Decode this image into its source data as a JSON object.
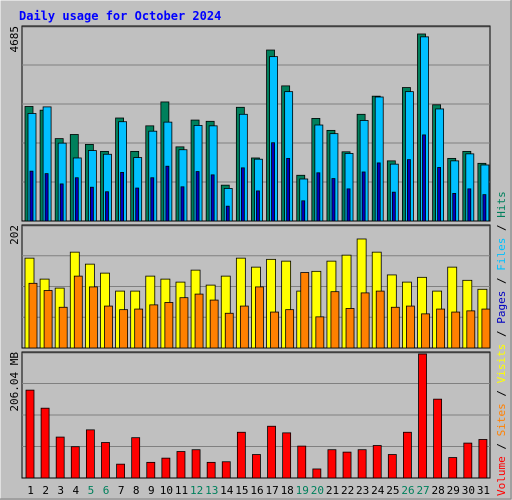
{
  "chart_data": {
    "type": "bar",
    "title": "Daily usage for October 2024",
    "categories": [
      "1",
      "2",
      "3",
      "4",
      "5",
      "6",
      "7",
      "8",
      "9",
      "10",
      "11",
      "12",
      "13",
      "14",
      "15",
      "16",
      "17",
      "18",
      "19",
      "20",
      "21",
      "22",
      "23",
      "24",
      "25",
      "26",
      "27",
      "28",
      "29",
      "30",
      "31"
    ],
    "weekend_days": [
      "5",
      "6",
      "12",
      "13",
      "19",
      "20",
      "26",
      "27"
    ],
    "panels": {
      "top": {
        "max_label": "4685",
        "ylim": [
          0,
          4685
        ],
        "series": [
          {
            "name": "Hits",
            "values": [
              2780,
              2690,
              2000,
              2100,
              1860,
              1690,
              2500,
              1690,
              2310,
              2890,
              1800,
              2450,
              2420,
              870,
              2760,
              1530,
              4150,
              3280,
              1110,
              2490,
              2200,
              1680,
              2590,
              3030,
              1460,
              3240,
              4540,
              2820,
              1520,
              1690,
              1400
            ]
          },
          {
            "name": "Files",
            "values": [
              2610,
              2770,
              1890,
              1530,
              1710,
              1620,
              2410,
              1540,
              2180,
              2400,
              1730,
              2320,
              2310,
              790,
              2590,
              1500,
              3990,
              3140,
              1020,
              2330,
              2120,
              1640,
              2440,
              3010,
              1380,
              3140,
              4470,
              2720,
              1460,
              1630,
              1360
            ]
          },
          {
            "name": "Pages",
            "values": [
              1210,
              1150,
              900,
              1050,
              820,
              710,
              1180,
              800,
              1050,
              1330,
              830,
              1200,
              1120,
              360,
              1290,
              730,
              1900,
              1520,
              490,
              1170,
              1030,
              780,
              1190,
              1410,
              700,
              1490,
              2090,
              1300,
              670,
              780,
              640
            ]
          }
        ]
      },
      "middle": {
        "max_label": "202",
        "ylim": [
          0,
          202
        ],
        "series": [
          {
            "name": "Visits",
            "values": [
              150,
              115,
              100,
              160,
              140,
              125,
              95,
              95,
              120,
              115,
              110,
              130,
              105,
              120,
              150,
              135,
              148,
              145,
              95,
              128,
              145,
              155,
              182,
              160,
              122,
              110,
              118,
              95,
              135,
              113,
              98
            ]
          },
          {
            "name": "Sites",
            "values": [
              108,
              96,
              68,
              120,
              102,
              70,
              64,
              65,
              72,
              76,
              84,
              90,
              80,
              58,
              70,
              102,
              60,
              64,
              126,
              52,
              94,
              66,
              92,
              95,
              68,
              70,
              57,
              65,
              60,
              62,
              65
            ]
          }
        ]
      },
      "bottom": {
        "max_label": "206.04 MB",
        "ylim": [
          0,
          206.04
        ],
        "series": [
          {
            "name": "Volume",
            "values": [
              146,
              116,
              68,
              52,
              80,
              59,
              23,
              67,
              26,
              33,
              44,
              47,
              26,
              27,
              76,
              39,
              86,
              75,
              53,
              15,
              47,
              43,
              47,
              54,
              39,
              76,
              206,
              131,
              34,
              58,
              64
            ]
          }
        ]
      }
    },
    "legend": [
      "Volume",
      "Sites",
      "Visits",
      "Pages",
      "Files",
      "Hits"
    ],
    "grid": true
  },
  "colors": {
    "background": "#c0c0c0",
    "plot": "#c0c0c0",
    "title": "#0000ff",
    "hits": "#00805c",
    "files": "#00c0ff",
    "pages": "#0000c0",
    "visits": "#ffff00",
    "sites": "#ff8000",
    "volume": "#ff0000",
    "weekday_label": "#000000",
    "weekend_label": "#00805c",
    "legend_sep": "#000000"
  }
}
